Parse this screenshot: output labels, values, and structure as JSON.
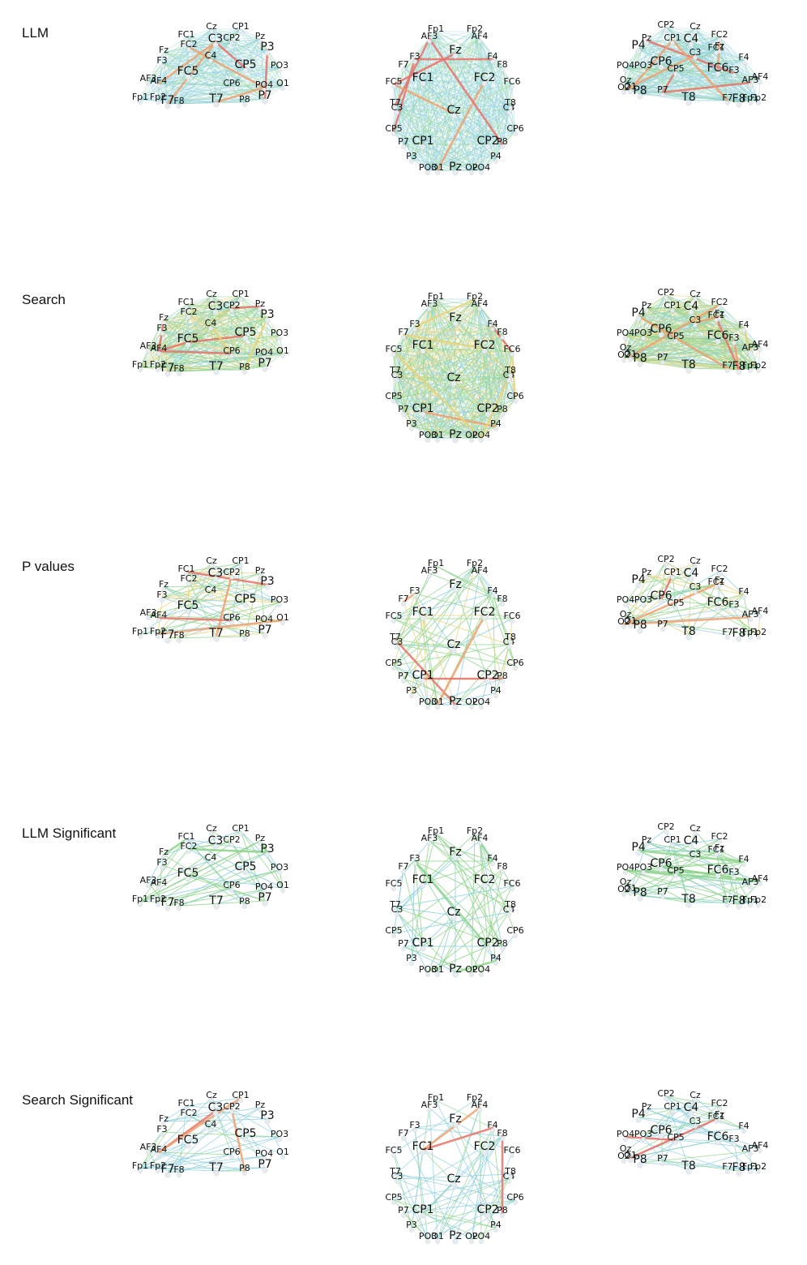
{
  "rows": [
    {
      "label": "LLM",
      "style": "dense-llm"
    },
    {
      "label": "Search",
      "style": "dense-search"
    },
    {
      "label": "P values",
      "style": "sparse-p"
    },
    {
      "label": "LLM Significant",
      "style": "sparse-llm"
    },
    {
      "label": "Search Significant",
      "style": "sparse-search"
    }
  ],
  "views": {
    "left": {
      "nodes": [
        {
          "label": "FC1",
          "big": false
        },
        {
          "label": "Cz",
          "big": false
        },
        {
          "label": "CP1",
          "big": false
        },
        {
          "label": "C3",
          "big": true
        },
        {
          "label": "CP2",
          "big": false
        },
        {
          "label": "Pz",
          "big": false
        },
        {
          "label": "P3",
          "big": true
        },
        {
          "label": "Fz",
          "big": false
        },
        {
          "label": "FC2",
          "big": false
        },
        {
          "label": "F3",
          "big": false
        },
        {
          "label": "C4",
          "big": false
        },
        {
          "label": "CP5",
          "big": true
        },
        {
          "label": "PO3",
          "big": false
        },
        {
          "label": "AF3",
          "big": false
        },
        {
          "label": "AF4",
          "big": false
        },
        {
          "label": "FC5",
          "big": true
        },
        {
          "label": "CP6",
          "big": false
        },
        {
          "label": "PO4",
          "big": false
        },
        {
          "label": "O1",
          "big": false
        },
        {
          "label": "Fp1",
          "big": false
        },
        {
          "label": "Fp2",
          "big": false
        },
        {
          "label": "F7",
          "big": true
        },
        {
          "label": "F8",
          "big": false
        },
        {
          "label": "T7",
          "big": true
        },
        {
          "label": "P8",
          "big": false
        },
        {
          "label": "P7",
          "big": true
        }
      ]
    },
    "top": {
      "nodes": [
        {
          "label": "Fp1",
          "big": false
        },
        {
          "label": "Fp2",
          "big": false
        },
        {
          "label": "AF3",
          "big": false
        },
        {
          "label": "AF4",
          "big": false
        },
        {
          "label": "Fz",
          "big": true
        },
        {
          "label": "F3",
          "big": false
        },
        {
          "label": "F4",
          "big": false
        },
        {
          "label": "F7",
          "big": false
        },
        {
          "label": "F8",
          "big": false
        },
        {
          "label": "FC5",
          "big": false
        },
        {
          "label": "FC1",
          "big": true
        },
        {
          "label": "FC2",
          "big": true
        },
        {
          "label": "FC6",
          "big": false
        },
        {
          "label": "T7",
          "big": false
        },
        {
          "label": "C3",
          "big": false
        },
        {
          "label": "Cz",
          "big": true
        },
        {
          "label": "C4",
          "big": false
        },
        {
          "label": "T8",
          "big": false
        },
        {
          "label": "CP5",
          "big": false
        },
        {
          "label": "CP6",
          "big": false
        },
        {
          "label": "P7",
          "big": false
        },
        {
          "label": "CP1",
          "big": true
        },
        {
          "label": "CP2",
          "big": true
        },
        {
          "label": "P8",
          "big": false
        },
        {
          "label": "P3",
          "big": false
        },
        {
          "label": "P4",
          "big": false
        },
        {
          "label": "PO3",
          "big": false
        },
        {
          "label": "O1",
          "big": false
        },
        {
          "label": "Pz",
          "big": true
        },
        {
          "label": "O2",
          "big": false
        },
        {
          "label": "PO4",
          "big": false
        }
      ]
    },
    "right": {
      "nodes": [
        {
          "label": "CP2",
          "big": false
        },
        {
          "label": "Cz",
          "big": false
        },
        {
          "label": "CP1",
          "big": false
        },
        {
          "label": "C4",
          "big": true
        },
        {
          "label": "FC2",
          "big": false
        },
        {
          "label": "Pz",
          "big": false
        },
        {
          "label": "P4",
          "big": true
        },
        {
          "label": "Fz",
          "big": false
        },
        {
          "label": "FC1",
          "big": false
        },
        {
          "label": "C3",
          "big": false
        },
        {
          "label": "F4",
          "big": false
        },
        {
          "label": "CP6",
          "big": true
        },
        {
          "label": "PO4",
          "big": false
        },
        {
          "label": "PO3",
          "big": false
        },
        {
          "label": "FC6",
          "big": true
        },
        {
          "label": "CP5",
          "big": false
        },
        {
          "label": "F3",
          "big": false
        },
        {
          "label": "AF4",
          "big": false
        },
        {
          "label": "AF3",
          "big": false
        },
        {
          "label": "Oz",
          "big": false
        },
        {
          "label": "O2",
          "big": false
        },
        {
          "label": "O1",
          "big": false
        },
        {
          "label": "P8",
          "big": true
        },
        {
          "label": "P7",
          "big": false
        },
        {
          "label": "T8",
          "big": true
        },
        {
          "label": "F7",
          "big": false
        },
        {
          "label": "F8",
          "big": true
        },
        {
          "label": "Fp1",
          "big": false
        },
        {
          "label": "Fp2",
          "big": false
        }
      ]
    }
  },
  "colors": {
    "blue_edge": "#8ccfdc",
    "green_edge": "#8fd48c",
    "yellow_edge": "#e8d27a",
    "orange_edge": "#f0a070",
    "red_edge": "#e8736a",
    "node_fill": "#e6ecef"
  }
}
